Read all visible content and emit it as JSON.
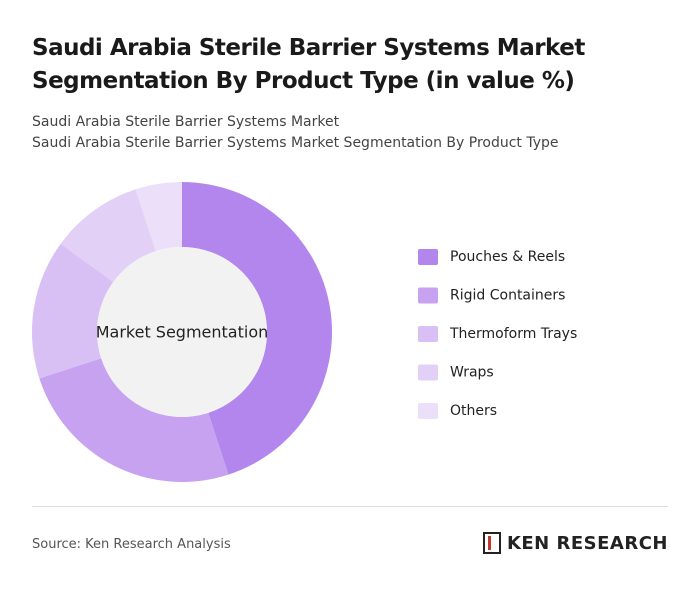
{
  "chart_data": {
    "type": "donut",
    "title": "Saudi Arabia Sterile Barrier Systems Market Segmentation By Product Type (in value %)",
    "subtitle": [
      "Saudi Arabia Sterile Barrier Systems Market",
      "Saudi Arabia Sterile Barrier Systems Market Segmentation By Product Type"
    ],
    "center_label": "Market Segmentation",
    "categories": [
      "Pouches & Reels",
      "Rigid Containers",
      "Thermoform Trays",
      "Wraps",
      "Others"
    ],
    "values": [
      45,
      25,
      15,
      10,
      5
    ],
    "colors": [
      "#b286ed",
      "#c6a2f1",
      "#d8c0f5",
      "#e2d0f7",
      "#ebdff9"
    ],
    "legend": "right"
  },
  "footer": {
    "source": "Source: Ken Research Analysis",
    "logo": "KEN RESEARCH"
  }
}
